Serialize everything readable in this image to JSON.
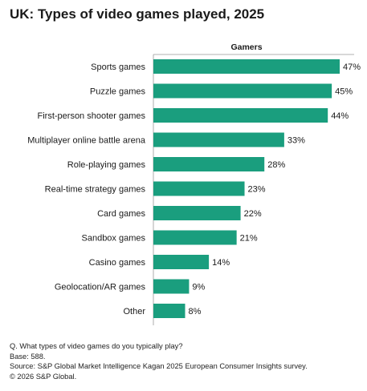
{
  "chart_data": {
    "type": "bar",
    "orientation": "horizontal",
    "title": "UK: Types of video games played, 2025",
    "series": [
      {
        "name": "Gamers",
        "values": [
          47,
          45,
          44,
          33,
          28,
          23,
          22,
          21,
          14,
          9,
          8
        ],
        "color": "#1a9e7e"
      }
    ],
    "categories": [
      "Sports games",
      "Puzzle games",
      "First-person shooter games",
      "Multiplayer online battle arena",
      "Role-playing games",
      "Real-time strategy games",
      "Card games",
      "Sandbox games",
      "Casino games",
      "Geolocation/AR games",
      "Other"
    ],
    "value_labels": [
      "47%",
      "45%",
      "44%",
      "33%",
      "28%",
      "23%",
      "22%",
      "21%",
      "14%",
      "9%",
      "8%"
    ],
    "xlim": [
      0,
      47
    ],
    "grid": false,
    "legend": "top"
  },
  "footnotes": {
    "question": "Q. What types of video games do you typically play?",
    "base": "Base: 588.",
    "source": "Source: S&P Global Market Intelligence Kagan 2025 European Consumer Insights survey.",
    "copyright": "© 2026 S&P Global."
  }
}
